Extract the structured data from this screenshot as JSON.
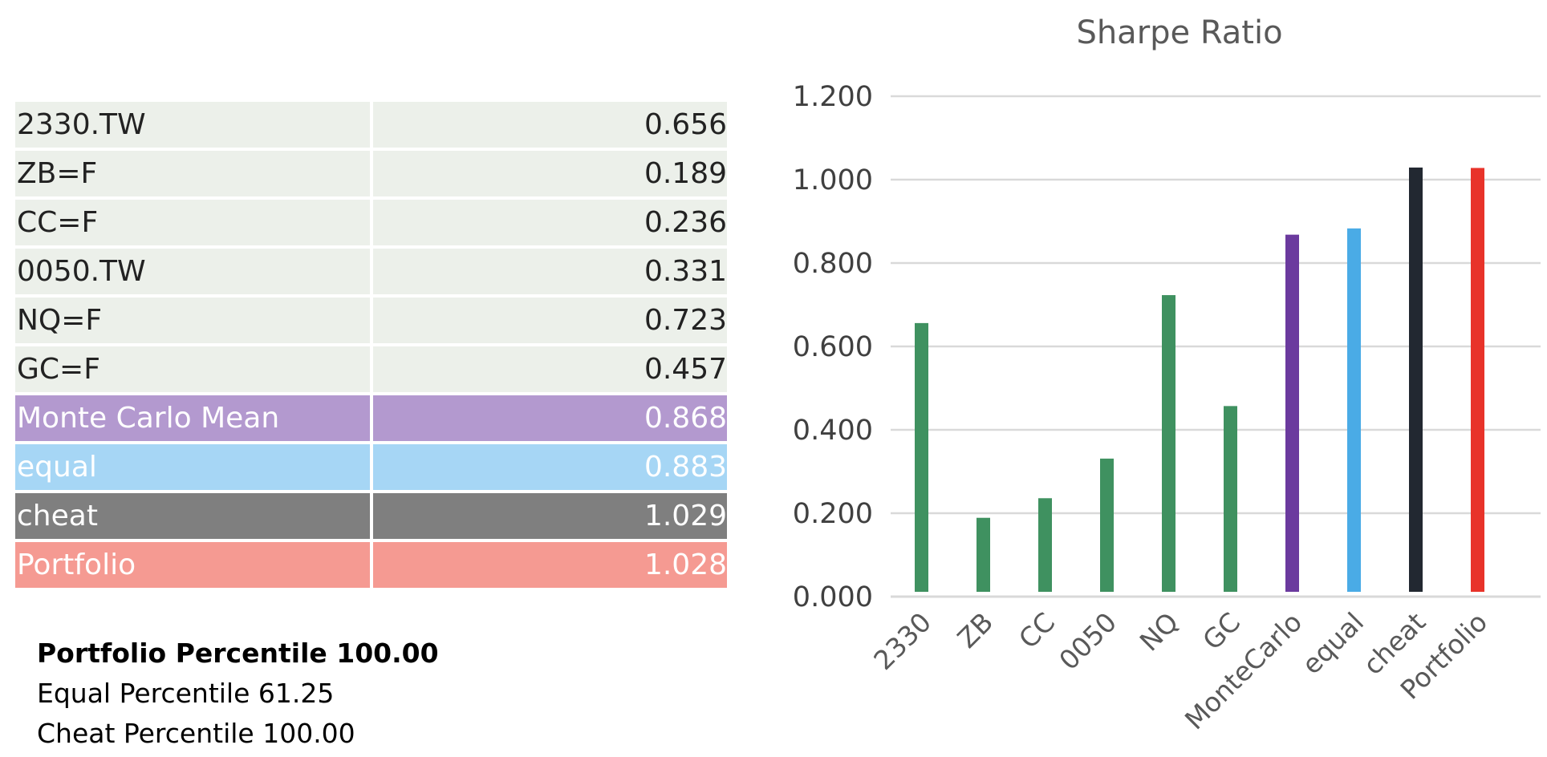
{
  "table": {
    "rows": [
      {
        "name": "2330.TW",
        "value": "0.656",
        "style": "plain"
      },
      {
        "name": "ZB=F",
        "value": "0.189",
        "style": "plain"
      },
      {
        "name": "CC=F",
        "value": "0.236",
        "style": "plain"
      },
      {
        "name": "0050.TW",
        "value": "0.331",
        "style": "plain"
      },
      {
        "name": "NQ=F",
        "value": "0.723",
        "style": "plain"
      },
      {
        "name": "GC=F",
        "value": "0.457",
        "style": "plain"
      },
      {
        "name": "Monte Carlo Mean",
        "value": "0.868",
        "style": "purple"
      },
      {
        "name": "equal",
        "value": "0.883",
        "style": "blue"
      },
      {
        "name": "cheat",
        "value": "1.029",
        "style": "gray"
      },
      {
        "name": "Portfolio",
        "value": "1.028",
        "style": "salmon"
      }
    ]
  },
  "notes": {
    "portfolio_percentile": "Portfolio Percentile 100.00",
    "equal_percentile": "Equal Percentile 61.25",
    "cheat_percentile": "Cheat Percentile 100.00"
  },
  "chart_data": {
    "type": "bar",
    "title": "Sharpe Ratio",
    "xlabel": "",
    "ylabel": "",
    "categories": [
      "2330",
      "ZB",
      "CC",
      "0050",
      "NQ",
      "GC",
      "MonteCarlo",
      "equal",
      "cheat",
      "Portfolio"
    ],
    "values": [
      0.656,
      0.189,
      0.236,
      0.331,
      0.723,
      0.457,
      0.868,
      0.883,
      1.029,
      1.028
    ],
    "bar_colors": [
      "#3f9160",
      "#3f9160",
      "#3f9160",
      "#3f9160",
      "#3f9160",
      "#3f9160",
      "#6b3a9e",
      "#4aabe6",
      "#222831",
      "#e8332a"
    ],
    "ylim": [
      0,
      1.2
    ],
    "yticks": [
      "0.000",
      "0.200",
      "0.400",
      "0.600",
      "0.800",
      "1.000",
      "1.200"
    ],
    "grid": true,
    "legend": "none"
  }
}
